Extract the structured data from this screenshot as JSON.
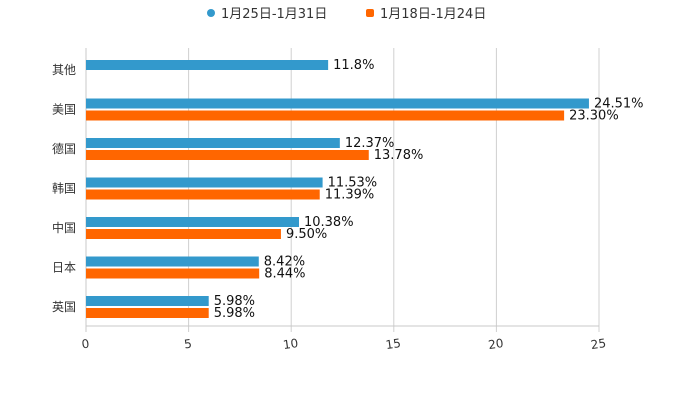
{
  "chart_data": {
    "type": "bar",
    "orientation": "horizontal",
    "categories": [
      "其他",
      "美国",
      "德国",
      "韩国",
      "中国",
      "日本",
      "英国"
    ],
    "series": [
      {
        "name": "1月25日-1月31日",
        "color": "#3399cc",
        "values": [
          11.8,
          24.51,
          12.37,
          11.53,
          10.38,
          8.42,
          5.98
        ],
        "labels": [
          "11.8%",
          "24.51%",
          "12.37%",
          "11.53%",
          "10.38%",
          "8.42%",
          "5.98%"
        ]
      },
      {
        "name": "1月18日-1月24日",
        "color": "#ff6600",
        "values": [
          null,
          23.3,
          13.78,
          11.39,
          9.5,
          8.44,
          5.98
        ],
        "labels": [
          null,
          "23.30%",
          "13.78%",
          "11.39%",
          "9.50%",
          "8.44%",
          "5.98%"
        ]
      }
    ],
    "xlim": [
      0,
      25
    ],
    "x_ticks": [
      "0",
      "5",
      "10",
      "15",
      "20",
      "25"
    ],
    "x_tick_values": [
      0,
      5,
      10,
      15,
      20,
      25
    ],
    "grid": true,
    "legend": "top-center",
    "title": "",
    "xlabel": "",
    "ylabel": ""
  }
}
